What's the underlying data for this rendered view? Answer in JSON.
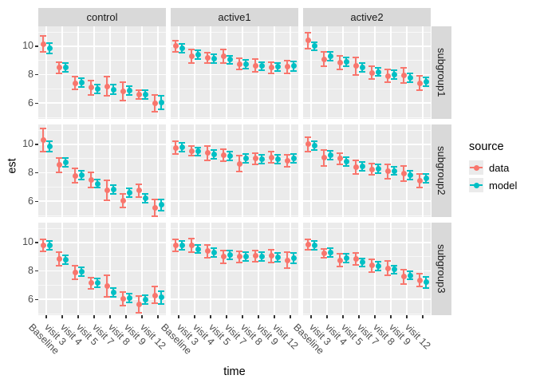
{
  "figure": {
    "y_axis_title": "est",
    "x_axis_title": "time",
    "y_major_ticks": [
      10,
      8,
      6
    ],
    "y_minor_ticks": [
      11,
      9,
      7,
      5
    ]
  },
  "legend": {
    "title": "source",
    "entries": [
      {
        "label": "data",
        "color": "#F8766D"
      },
      {
        "label": "model",
        "color": "#00BFC4"
      }
    ]
  },
  "colors": {
    "data_series": "#F8766D",
    "model_series": "#00BFC4",
    "panel_background": "#EBEBEB",
    "strip_background": "#D9D9D9",
    "grid_major": "#FFFFFF",
    "grid_minor": "rgba(255,255,255,0.65)",
    "tick_mark": "#333333",
    "tick_label": "#4D4D4D"
  },
  "chart_data": {
    "type": "pointrange",
    "title": "",
    "xlabel": "time",
    "ylabel": "est",
    "ylim": [
      4.9,
      11.4
    ],
    "grid": true,
    "legend_position": "right",
    "facet_columns": [
      "control",
      "active1",
      "active2"
    ],
    "facet_rows": [
      "subgroup1",
      "subgroup2",
      "subgroup3"
    ],
    "categories": [
      "Baseline",
      "visit 3",
      "visit 4",
      "visit 5",
      "visit 7",
      "visit 8",
      "visit 9",
      "visit 12"
    ],
    "series_names": [
      "data",
      "model"
    ],
    "panels": [
      {
        "column": "control",
        "row": "subgroup1",
        "series": {
          "data": {
            "est": [
              10.15,
              8.5,
              7.4,
              7.1,
              7.15,
              6.85,
              6.6,
              6.0
            ],
            "lo": [
              9.6,
              8.1,
              6.95,
              6.6,
              6.55,
              6.2,
              6.3,
              5.4
            ],
            "hi": [
              10.7,
              8.9,
              7.85,
              7.6,
              7.85,
              7.5,
              6.9,
              6.6
            ]
          },
          "model": {
            "est": [
              9.85,
              8.5,
              7.45,
              7.0,
              6.95,
              6.9,
              6.6,
              6.05
            ],
            "lo": [
              9.5,
              8.2,
              7.15,
              6.7,
              6.65,
              6.6,
              6.3,
              5.55
            ],
            "hi": [
              10.2,
              8.8,
              7.75,
              7.3,
              7.3,
              7.2,
              6.9,
              6.5
            ]
          }
        }
      },
      {
        "column": "active1",
        "row": "subgroup1",
        "series": {
          "data": {
            "est": [
              10.0,
              9.3,
              9.2,
              9.3,
              8.75,
              8.65,
              8.5,
              8.55
            ],
            "lo": [
              9.6,
              8.8,
              8.85,
              8.85,
              8.35,
              8.2,
              8.1,
              8.1
            ],
            "hi": [
              10.4,
              9.8,
              9.55,
              9.75,
              9.15,
              9.1,
              8.9,
              9.0
            ]
          },
          "model": {
            "est": [
              9.85,
              9.4,
              9.15,
              9.05,
              8.75,
              8.6,
              8.55,
              8.6
            ],
            "lo": [
              9.55,
              9.1,
              8.85,
              8.75,
              8.45,
              8.3,
              8.25,
              8.25
            ],
            "hi": [
              10.15,
              9.7,
              9.45,
              9.35,
              9.05,
              8.9,
              8.85,
              8.95
            ]
          }
        }
      },
      {
        "column": "active2",
        "row": "subgroup1",
        "series": {
          "data": {
            "est": [
              10.4,
              9.1,
              8.85,
              8.6,
              8.15,
              7.9,
              7.95,
              7.4
            ],
            "lo": [
              9.85,
              8.6,
              8.4,
              8.0,
              7.7,
              7.45,
              7.4,
              6.9
            ],
            "hi": [
              10.95,
              9.6,
              9.3,
              9.2,
              8.6,
              8.35,
              8.5,
              7.9
            ]
          },
          "model": {
            "est": [
              10.0,
              9.3,
              8.9,
              8.5,
              8.2,
              8.0,
              7.8,
              7.5
            ],
            "lo": [
              9.7,
              9.0,
              8.6,
              8.2,
              7.9,
              7.7,
              7.5,
              7.2
            ],
            "hi": [
              10.3,
              9.6,
              9.2,
              8.8,
              8.5,
              8.3,
              8.1,
              7.8
            ]
          }
        }
      },
      {
        "column": "control",
        "row": "subgroup2",
        "series": {
          "data": {
            "est": [
              10.3,
              8.55,
              7.8,
              7.5,
              6.8,
              6.05,
              6.75,
              5.55
            ],
            "lo": [
              9.5,
              8.05,
              7.3,
              6.95,
              6.1,
              5.55,
              6.3,
              4.95
            ],
            "hi": [
              11.1,
              9.05,
              8.3,
              8.05,
              7.5,
              6.55,
              7.2,
              6.15
            ]
          },
          "model": {
            "est": [
              9.85,
              8.75,
              7.85,
              7.25,
              6.85,
              6.6,
              6.2,
              5.75
            ],
            "lo": [
              9.5,
              8.45,
              7.55,
              6.95,
              6.55,
              6.3,
              5.9,
              5.35
            ],
            "hi": [
              10.2,
              9.05,
              8.15,
              7.55,
              7.15,
              6.9,
              6.5,
              6.15
            ]
          }
        }
      },
      {
        "column": "active1",
        "row": "subgroup2",
        "series": {
          "data": {
            "est": [
              9.75,
              9.55,
              9.4,
              9.25,
              8.65,
              9.0,
              9.1,
              8.85
            ],
            "lo": [
              9.3,
              9.2,
              8.9,
              8.85,
              8.1,
              8.6,
              8.7,
              8.45
            ],
            "hi": [
              10.2,
              9.9,
              9.9,
              9.65,
              9.2,
              9.4,
              9.5,
              9.25
            ]
          },
          "model": {
            "est": [
              9.8,
              9.5,
              9.3,
              9.2,
              9.0,
              8.95,
              8.95,
              9.0
            ],
            "lo": [
              9.5,
              9.2,
              9.0,
              8.9,
              8.7,
              8.65,
              8.65,
              8.7
            ],
            "hi": [
              10.1,
              9.8,
              9.6,
              9.5,
              9.3,
              9.25,
              9.25,
              9.3
            ]
          }
        }
      },
      {
        "column": "active2",
        "row": "subgroup2",
        "series": {
          "data": {
            "est": [
              10.0,
              9.05,
              9.0,
              8.4,
              8.25,
              8.1,
              7.95,
              7.45
            ],
            "lo": [
              9.5,
              8.5,
              8.6,
              7.9,
              7.85,
              7.6,
              7.4,
              7.0
            ],
            "hi": [
              10.5,
              9.6,
              9.4,
              8.9,
              8.65,
              8.6,
              8.5,
              7.9
            ]
          },
          "model": {
            "est": [
              9.9,
              9.25,
              8.8,
              8.45,
              8.3,
              8.15,
              7.85,
              7.6
            ],
            "lo": [
              9.6,
              8.95,
              8.5,
              8.15,
              8.0,
              7.85,
              7.55,
              7.3
            ],
            "hi": [
              10.2,
              9.55,
              9.1,
              8.75,
              8.6,
              8.45,
              8.15,
              7.9
            ]
          }
        }
      },
      {
        "column": "control",
        "row": "subgroup3",
        "series": {
          "data": {
            "est": [
              9.8,
              8.85,
              7.9,
              7.15,
              6.95,
              6.05,
              5.65,
              6.3
            ],
            "lo": [
              9.4,
              8.4,
              7.4,
              6.75,
              6.2,
              5.55,
              5.05,
              5.75
            ],
            "hi": [
              10.2,
              9.3,
              8.4,
              7.55,
              7.7,
              6.55,
              6.25,
              6.9
            ]
          },
          "model": {
            "est": [
              9.8,
              8.8,
              7.95,
              7.15,
              6.5,
              6.1,
              6.0,
              6.15
            ],
            "lo": [
              9.5,
              8.5,
              7.65,
              6.85,
              6.2,
              5.8,
              5.7,
              5.7
            ],
            "hi": [
              10.1,
              9.1,
              8.25,
              7.45,
              6.8,
              6.4,
              6.3,
              6.6
            ]
          }
        }
      },
      {
        "column": "active1",
        "row": "subgroup3",
        "series": {
          "data": {
            "est": [
              9.8,
              9.8,
              9.4,
              9.0,
              9.0,
              9.05,
              9.05,
              8.75
            ],
            "lo": [
              9.4,
              9.3,
              8.95,
              8.55,
              8.6,
              8.65,
              8.6,
              8.2
            ],
            "hi": [
              10.2,
              10.3,
              9.85,
              9.45,
              9.4,
              9.45,
              9.5,
              9.3
            ]
          },
          "model": {
            "est": [
              9.8,
              9.55,
              9.3,
              9.15,
              9.0,
              9.0,
              8.95,
              8.9
            ],
            "lo": [
              9.5,
              9.25,
              9.0,
              8.85,
              8.7,
              8.7,
              8.65,
              8.55
            ],
            "hi": [
              10.1,
              9.85,
              9.6,
              9.45,
              9.3,
              9.3,
              9.25,
              9.25
            ]
          }
        }
      },
      {
        "column": "active2",
        "row": "subgroup3",
        "series": {
          "data": {
            "est": [
              9.85,
              9.25,
              8.75,
              8.85,
              8.4,
              8.2,
              7.6,
              7.35
            ],
            "lo": [
              9.5,
              8.95,
              8.3,
              8.45,
              7.95,
              7.7,
              7.1,
              6.9
            ],
            "hi": [
              10.2,
              9.55,
              9.2,
              9.25,
              8.85,
              8.7,
              8.1,
              7.8
            ]
          },
          "model": {
            "est": [
              9.8,
              9.3,
              8.9,
              8.6,
              8.35,
              8.1,
              7.7,
              7.2
            ],
            "lo": [
              9.5,
              9.0,
              8.6,
              8.3,
              8.05,
              7.8,
              7.4,
              6.8
            ],
            "hi": [
              10.1,
              9.6,
              9.2,
              8.9,
              8.65,
              8.4,
              8.0,
              7.6
            ]
          }
        }
      }
    ]
  }
}
